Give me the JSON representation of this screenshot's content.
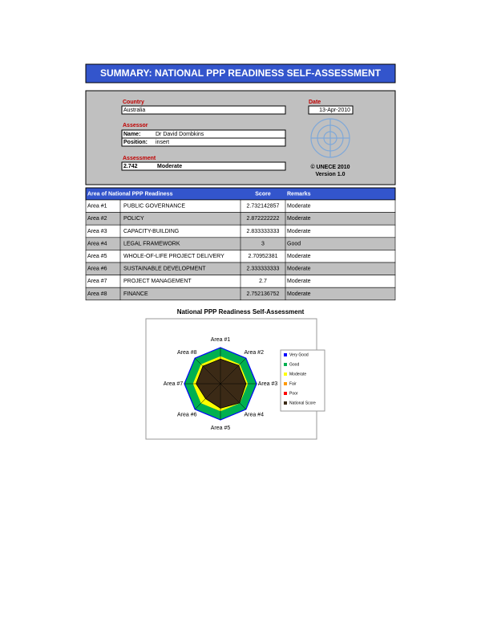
{
  "header": {
    "title": "SUMMARY: NATIONAL PPP READINESS SELF-ASSESSMENT"
  },
  "info": {
    "country_label": "Country",
    "country": "Australia",
    "date_label": "Date",
    "date": "13-Apr-2010",
    "assessor_label": "Assessor",
    "name_label": "Name:",
    "name": "Dr David Dombkins",
    "position_label": "Position:",
    "position": "insert",
    "assessment_label": "Assessment",
    "assessment_score": 2.742,
    "assessment_rating": "Moderate",
    "copyright": "© UNECE 2010",
    "version": "Version 1.0"
  },
  "table": {
    "columns": [
      "Area of National PPP Readiness",
      "Score",
      "Remarks"
    ],
    "rows": [
      {
        "area": "Area #1",
        "name": "PUBLIC GOVERNANCE",
        "score": 2.732142857,
        "remarks": "Moderate"
      },
      {
        "area": "Area #2",
        "name": "POLICY",
        "score": 2.872222222,
        "remarks": "Moderate"
      },
      {
        "area": "Area #3",
        "name": "CAPACITY-BUILDING",
        "score": 2.833333333,
        "remarks": "Moderate"
      },
      {
        "area": "Area #4",
        "name": "LEGAL FRAMEWORK",
        "score": 3,
        "remarks": "Good"
      },
      {
        "area": "Area #5",
        "name": "WHOLE-OF-LIFE PROJECT DELIVERY",
        "score": 2.70952381,
        "remarks": "Moderate"
      },
      {
        "area": "Area #6",
        "name": "SUSTAINABLE DEVELOPMENT",
        "score": 2.333333333,
        "remarks": "Moderate"
      },
      {
        "area": "Area #7",
        "name": "PROJECT MANAGEMENT",
        "score": 2.7,
        "remarks": "Moderate"
      },
      {
        "area": "Area #8",
        "name": "FINANCE",
        "score": 2.752136752,
        "remarks": "Moderate"
      }
    ]
  },
  "chart_data": {
    "type": "radar",
    "title": "National PPP Readiness Self-Assessment",
    "categories": [
      "Area #1",
      "Area #2",
      "Area #3",
      "Area #4",
      "Area #5",
      "Area #6",
      "Area #7",
      "Area #8"
    ],
    "rlim": [
      0,
      4
    ],
    "series": [
      {
        "name": "Very Good",
        "color": "#0000ff",
        "value": 4,
        "line": true
      },
      {
        "name": "Good",
        "color": "#00b050",
        "value": 4
      },
      {
        "name": "Moderate",
        "color": "#ffff00",
        "value": 3
      },
      {
        "name": "Fair",
        "color": "#ff9900",
        "value": 2
      },
      {
        "name": "Poor",
        "color": "#ff0000",
        "value": 1
      },
      {
        "name": "National Score",
        "color": "#3b2a16"
      }
    ]
  }
}
